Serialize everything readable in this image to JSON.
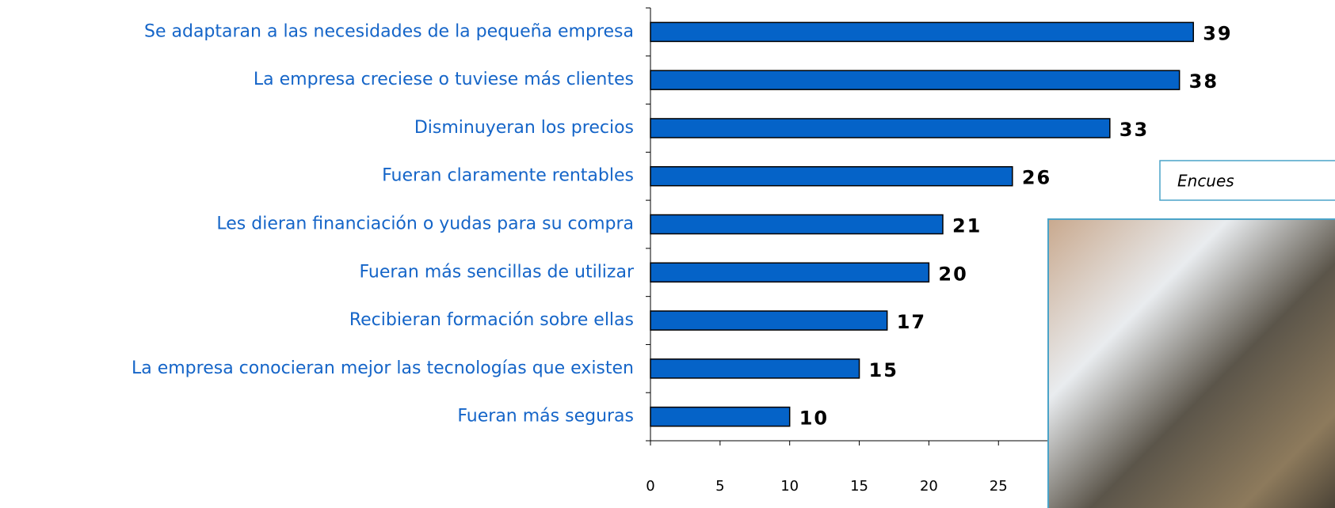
{
  "chart_data": {
    "type": "hbar",
    "annotation": "Encues",
    "categories": [
      "Se adaptaran a las necesidades de la pequeña empresa",
      "La empresa creciese o tuviese más clientes",
      "Disminuyeran los precios",
      "Fueran claramente rentables",
      "Les dieran financiación o yudas para su compra",
      "Fueran más sencillas de utilizar",
      "Recibieran formación sobre ellas",
      "La empresa conocieran mejor las tecnologías que existen",
      "Fueran más seguras"
    ],
    "values": [
      39,
      38,
      33,
      26,
      21,
      20,
      17,
      15,
      10
    ],
    "color": "#0563c8",
    "xlim": [
      0,
      40
    ],
    "xticks": [
      0,
      5,
      10,
      15,
      20,
      25
    ]
  }
}
